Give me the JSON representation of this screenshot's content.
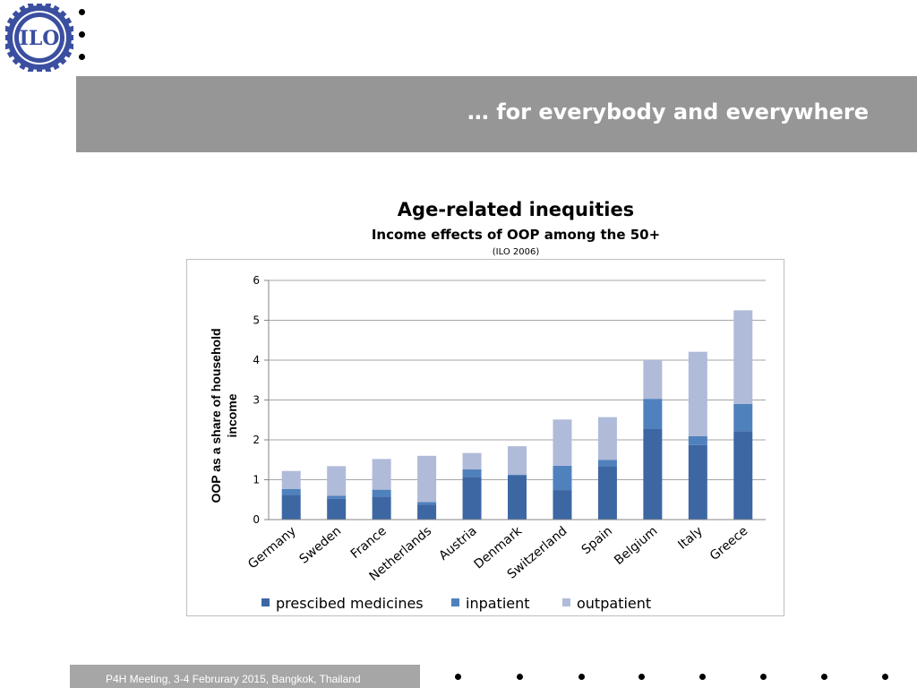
{
  "header": {
    "logo_text": "ILO",
    "banner_title": "… for everybody and everywhere"
  },
  "chart_titles": {
    "title": "Age-related inequities",
    "subtitle": "Income effects of OOP among the 50+",
    "source": "(ILO 2006)"
  },
  "footer": {
    "text": "P4H Meeting, 3-4 Februrary 2015, Bangkok, Thailand"
  },
  "colors": {
    "banner": "#969696",
    "prescibed_medicines": "#3d67a3",
    "inpatient": "#4f81bd",
    "outpatient": "#b0bbd9"
  },
  "chart_data": {
    "type": "bar",
    "stacked": true,
    "title": "Age-related inequities",
    "subtitle": "Income effects of OOP among the 50+",
    "ylabel": "OOP as a share of household income",
    "xlabel": "",
    "ylim": [
      0,
      6
    ],
    "yticks": [
      0,
      1,
      2,
      3,
      4,
      5,
      6
    ],
    "grid": true,
    "legend_position": "bottom",
    "categories": [
      "Germany",
      "Sweden",
      "France",
      "Netherlands",
      "Austria",
      "Denmark",
      "Switzerland",
      "Spain",
      "Belgium",
      "Italy",
      "Greece"
    ],
    "series": [
      {
        "name": "prescibed medicines",
        "color": "#3d67a3",
        "values": [
          0.62,
          0.52,
          0.58,
          0.37,
          1.07,
          1.11,
          0.74,
          1.34,
          2.27,
          1.87,
          2.22
        ]
      },
      {
        "name": "inpatient",
        "color": "#4f81bd",
        "values": [
          0.15,
          0.08,
          0.17,
          0.07,
          0.19,
          0.02,
          0.61,
          0.16,
          0.76,
          0.22,
          0.68
        ]
      },
      {
        "name": "outpatient",
        "color": "#b0bbd9",
        "values": [
          0.45,
          0.74,
          0.77,
          1.16,
          0.41,
          0.71,
          1.16,
          1.07,
          0.97,
          2.12,
          2.35
        ]
      }
    ]
  }
}
